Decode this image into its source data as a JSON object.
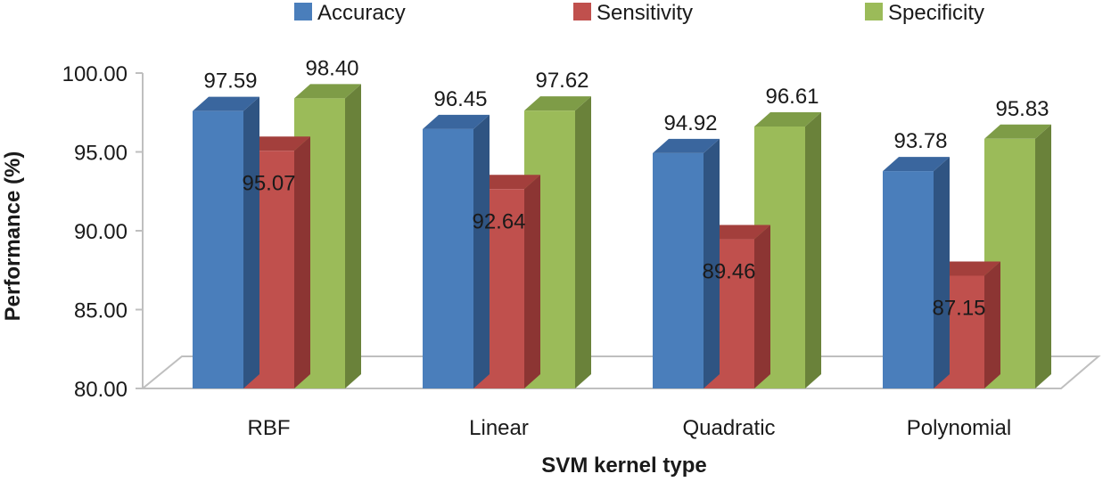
{
  "chart_data": {
    "type": "bar",
    "title": "",
    "xlabel": "SVM kernel type",
    "ylabel": "Performance (%)",
    "ylim": [
      80,
      100
    ],
    "yticks": [
      "80.00",
      "85.00",
      "90.00",
      "95.00",
      "100.00"
    ],
    "categories": [
      "RBF",
      "Linear",
      "Quadratic",
      "Polynomial"
    ],
    "legend_position": "top",
    "series": [
      {
        "name": "Accuracy",
        "color": "#4a7ebb",
        "side_color": "#2f5482",
        "top_color": "#3a669e",
        "values": [
          97.59,
          96.45,
          94.92,
          93.78
        ],
        "labels": [
          "97.59",
          "96.45",
          "94.92",
          "93.78"
        ]
      },
      {
        "name": "Sensitivity",
        "color": "#c0504d",
        "side_color": "#8c3533",
        "top_color": "#a33f3c",
        "values": [
          95.07,
          92.64,
          89.46,
          87.15
        ],
        "labels": [
          "95.07",
          "92.64",
          "89.46",
          "87.15"
        ]
      },
      {
        "name": "Specificity",
        "color": "#9bbb59",
        "side_color": "#6a823a",
        "top_color": "#7e9c47",
        "values": [
          98.4,
          97.62,
          96.61,
          95.83
        ],
        "labels": [
          "98.40",
          "97.62",
          "96.61",
          "95.83"
        ]
      }
    ]
  }
}
